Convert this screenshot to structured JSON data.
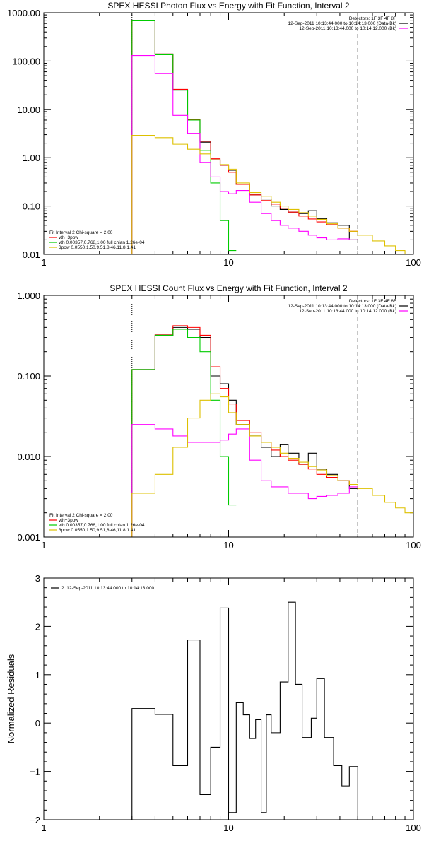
{
  "chart_data": [
    {
      "type": "line",
      "title": "SPEX HESSI Photon Flux vs Energy with Fit Function, Interval 2",
      "xscale": "log",
      "yscale": "log",
      "xlim": [
        1,
        100
      ],
      "ylim": [
        0.01,
        1000
      ],
      "x_ticks": [
        {
          "v": 1,
          "label": "1"
        },
        {
          "v": 10,
          "label": "10"
        },
        {
          "v": 100,
          "label": "100"
        }
      ],
      "y_ticks": [
        {
          "v": 0.01,
          "label": "0.01"
        },
        {
          "v": 0.1,
          "label": "0.10"
        },
        {
          "v": 1,
          "label": "1.00"
        },
        {
          "v": 10,
          "label": "10.00"
        },
        {
          "v": 100,
          "label": "100.00"
        },
        {
          "v": 1000,
          "label": "1000.00"
        }
      ],
      "ylabel": "",
      "legend_top": [
        "Detectors: 1F 3F 4F 8F",
        "12-Sep-2011 10:13:44.000 to 10:14:13.000 (Data-Bk)",
        "12-Sep-2011 10:13:44.000 to 10:14:12.000 (Bk)"
      ],
      "legend_top_colors": [
        "#ffffff",
        "#000000",
        "#ff00ff"
      ],
      "legend_bottom": [
        "Fit Interval 2   Chi-square = 2.00",
        "vth+3pow",
        "vth 0.00357,0.768,1.00   full chian 1.26e-04",
        "3pow 0.0550,1.50,9.51,8.46,11.8,1.41"
      ],
      "legend_bottom_colors": [
        "#ffffff",
        "#ff0000",
        "#00cc00",
        "#ddc000"
      ],
      "vlines": [
        {
          "x": 3,
          "style": "dotted"
        },
        {
          "x": 50,
          "style": "dashed"
        }
      ],
      "series": [
        {
          "color": "#000000",
          "edges": [
            3,
            4,
            5,
            6,
            7,
            8,
            9,
            10,
            11,
            13,
            15,
            17,
            19,
            21,
            24,
            27,
            30,
            34,
            39,
            45,
            50
          ],
          "values": [
            700,
            140,
            25,
            6,
            2.1,
            0.9,
            0.7,
            0.55,
            0.28,
            0.17,
            0.14,
            0.1,
            0.085,
            0.075,
            0.07,
            0.08,
            0.055,
            0.045,
            0.04,
            0.02
          ]
        },
        {
          "color": "#ff0000",
          "edges": [
            3,
            4,
            5,
            6,
            7,
            8,
            9,
            10,
            11,
            13,
            15,
            17,
            19,
            21,
            24,
            27,
            30,
            34,
            39,
            45,
            50
          ],
          "values": [
            700,
            140,
            26,
            6.2,
            2.2,
            0.95,
            0.7,
            0.5,
            0.28,
            0.17,
            0.13,
            0.11,
            0.09,
            0.075,
            0.062,
            0.054,
            0.047,
            0.041,
            0.035,
            0.03
          ]
        },
        {
          "color": "#00cc00",
          "edges": [
            3,
            4,
            5,
            6,
            7,
            8,
            9,
            10,
            11
          ],
          "values": [
            680,
            135,
            25,
            6,
            1.4,
            0.3,
            0.05,
            0.012
          ]
        },
        {
          "color": "#ff00ff",
          "edges": [
            3,
            4,
            5,
            6,
            7,
            8,
            9,
            10,
            11,
            13,
            15,
            17,
            19,
            21,
            24,
            27,
            30,
            34,
            39,
            45,
            50
          ],
          "values": [
            130,
            55,
            7.5,
            3.2,
            0.8,
            0.4,
            0.2,
            0.18,
            0.21,
            0.12,
            0.07,
            0.05,
            0.04,
            0.035,
            0.03,
            0.025,
            0.022,
            0.02,
            0.021,
            0.02
          ]
        },
        {
          "color": "#ddc000",
          "edges": [
            3,
            4,
            5,
            6,
            7,
            8,
            9,
            10,
            11,
            13,
            15,
            17,
            19,
            21,
            24,
            27,
            30,
            34,
            39,
            45,
            50,
            60,
            70,
            80,
            90,
            100
          ],
          "values": [
            2.9,
            2.6,
            1.9,
            1.5,
            1.2,
            0.9,
            0.72,
            0.58,
            0.3,
            0.19,
            0.16,
            0.12,
            0.1,
            0.085,
            0.073,
            0.062,
            0.053,
            0.043,
            0.035,
            0.03,
            0.025,
            0.019,
            0.015,
            0.012,
            0.01
          ]
        }
      ]
    },
    {
      "type": "line",
      "title": "SPEX HESSI Count Flux vs Energy with Fit Function, Interval 2",
      "xscale": "log",
      "yscale": "log",
      "xlim": [
        1,
        100
      ],
      "ylim": [
        0.001,
        1
      ],
      "x_ticks": [
        {
          "v": 1,
          "label": "1"
        },
        {
          "v": 10,
          "label": "10"
        },
        {
          "v": 100,
          "label": "100"
        }
      ],
      "y_ticks": [
        {
          "v": 0.001,
          "label": "0.001"
        },
        {
          "v": 0.01,
          "label": "0.010"
        },
        {
          "v": 0.1,
          "label": "0.100"
        },
        {
          "v": 1,
          "label": "1.000"
        }
      ],
      "ylabel": "",
      "legend_top": [
        "Detectors: 1F 3F 4F 8F",
        "12-Sep-2011 10:13:44.000 to 10:14:13.000 (Data-Bk)",
        "12-Sep-2011 10:13:44.000 to 10:14:12.000 (Bk)"
      ],
      "legend_top_colors": [
        "#ffffff",
        "#000000",
        "#ff00ff"
      ],
      "legend_bottom": [
        "Fit Interval 2   Chi-square = 2.00",
        "vth+3pow",
        "vth 0.00357,0.768,1.00   full chian 1.26e-04",
        "3pow 0.0550,1.50,9.51,8.46,11.8,1.41"
      ],
      "legend_bottom_colors": [
        "#ffffff",
        "#ff0000",
        "#00cc00",
        "#ddc000"
      ],
      "vlines": [
        {
          "x": 3,
          "style": "dotted"
        },
        {
          "x": 50,
          "style": "dashed"
        }
      ],
      "series": [
        {
          "color": "#000000",
          "edges": [
            3,
            4,
            5,
            6,
            7,
            8,
            9,
            10,
            11,
            13,
            15,
            17,
            19,
            21,
            24,
            27,
            30,
            34,
            39,
            45,
            50
          ],
          "values": [
            0.12,
            0.32,
            0.4,
            0.38,
            0.3,
            0.1,
            0.08,
            0.05,
            0.025,
            0.018,
            0.013,
            0.01,
            0.014,
            0.011,
            0.008,
            0.011,
            0.007,
            0.006,
            0.005,
            0.004
          ]
        },
        {
          "color": "#ff0000",
          "edges": [
            3,
            4,
            5,
            6,
            7,
            8,
            9,
            10,
            11,
            13,
            15,
            17,
            19,
            21,
            24,
            27,
            30,
            34,
            39,
            45,
            50
          ],
          "values": [
            0.12,
            0.33,
            0.42,
            0.4,
            0.32,
            0.13,
            0.07,
            0.045,
            0.028,
            0.02,
            0.015,
            0.012,
            0.01,
            0.009,
            0.008,
            0.007,
            0.006,
            0.0055,
            0.005,
            0.0045
          ]
        },
        {
          "color": "#00cc00",
          "edges": [
            3,
            4,
            5,
            6,
            7,
            8,
            9,
            10,
            11
          ],
          "values": [
            0.12,
            0.32,
            0.38,
            0.3,
            0.2,
            0.05,
            0.01,
            0.0025
          ]
        },
        {
          "color": "#ff00ff",
          "edges": [
            3,
            4,
            5,
            6,
            7,
            8,
            9,
            10,
            11,
            13,
            15,
            17,
            19,
            21,
            24,
            27,
            30,
            34,
            39,
            45,
            50
          ],
          "values": [
            0.025,
            0.022,
            0.018,
            0.015,
            0.015,
            0.015,
            0.016,
            0.019,
            0.022,
            0.009,
            0.005,
            0.0042,
            0.0042,
            0.0035,
            0.0035,
            0.003,
            0.0032,
            0.0033,
            0.0035,
            0.0042
          ]
        },
        {
          "color": "#ddc000",
          "edges": [
            3,
            4,
            5,
            6,
            7,
            8,
            9,
            10,
            11,
            13,
            15,
            17,
            19,
            21,
            24,
            27,
            30,
            34,
            39,
            45,
            50,
            60,
            70,
            80,
            90,
            100
          ],
          "values": [
            0.0035,
            0.006,
            0.013,
            0.03,
            0.05,
            0.06,
            0.055,
            0.035,
            0.025,
            0.018,
            0.015,
            0.013,
            0.011,
            0.0095,
            0.0085,
            0.0075,
            0.0068,
            0.0058,
            0.005,
            0.0045,
            0.004,
            0.0033,
            0.0027,
            0.0023,
            0.002
          ]
        }
      ]
    },
    {
      "type": "line",
      "title": "",
      "xscale": "log",
      "yscale": "linear",
      "xlim": [
        1,
        100
      ],
      "ylim": [
        -2,
        3
      ],
      "x_ticks": [
        {
          "v": 1,
          "label": "1"
        },
        {
          "v": 10,
          "label": "10"
        },
        {
          "v": 100,
          "label": "100"
        }
      ],
      "y_ticks": [
        {
          "v": -2,
          "label": "−2"
        },
        {
          "v": -1,
          "label": "−1"
        },
        {
          "v": 0,
          "label": "0"
        },
        {
          "v": 1,
          "label": "1"
        },
        {
          "v": 2,
          "label": "2"
        },
        {
          "v": 3,
          "label": "3"
        }
      ],
      "ylabel": "Normalized Residuals",
      "legend_top_left": "2. 12-Sep-2011 10:13:44.000 to 10:14:13.000",
      "series": [
        {
          "color": "#000000",
          "edges": [
            3,
            4,
            5,
            6,
            7,
            8,
            9,
            10,
            11,
            12,
            13,
            14,
            15,
            16,
            17,
            19,
            21,
            23,
            25,
            28,
            30,
            33,
            37,
            41,
            45,
            50
          ],
          "values": [
            0.3,
            0.18,
            -0.88,
            1.72,
            -1.48,
            -0.5,
            2.38,
            -1.85,
            0.42,
            0.17,
            -0.32,
            0.07,
            -1.85,
            0.17,
            -0.2,
            0.85,
            2.5,
            0.8,
            -0.3,
            0.1,
            0.92,
            -0.3,
            -0.88,
            -1.3,
            -0.9
          ]
        }
      ]
    }
  ]
}
